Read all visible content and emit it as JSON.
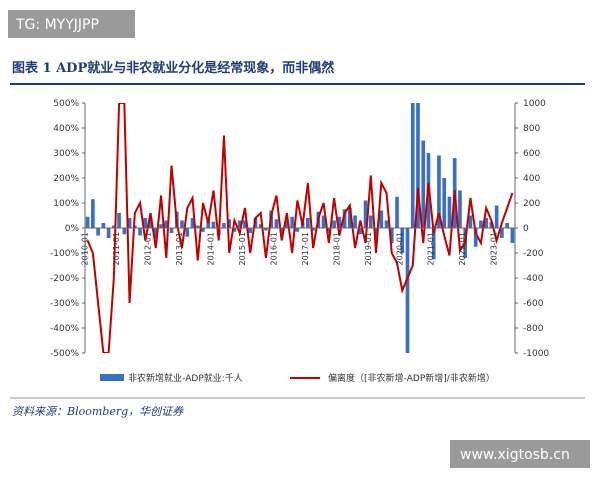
{
  "chart_data": {
    "type": "bar-line",
    "title": "图表 1   ADP就业与非农就业分化是经常现象，而非偶然",
    "source": "资料来源：Bloomberg，华创证券",
    "annotations": [
      "TG: MYYJJPP",
      "www.xigtosb.cn"
    ],
    "categories": [
      "2010-01",
      null,
      null,
      null,
      null,
      null,
      "2011-01",
      null,
      null,
      null,
      null,
      null,
      "2012-01",
      null,
      null,
      null,
      null,
      null,
      "2013-01",
      null,
      null,
      null,
      null,
      null,
      "2014-01",
      null,
      null,
      null,
      null,
      null,
      "2015-01",
      null,
      null,
      null,
      null,
      null,
      "2016-01",
      null,
      null,
      null,
      null,
      null,
      "2017-01",
      null,
      null,
      null,
      null,
      null,
      "2018-01",
      null,
      null,
      null,
      null,
      null,
      "2019-01",
      null,
      null,
      null,
      null,
      null,
      "2020-01",
      null,
      null,
      null,
      null,
      null,
      "2021-01",
      null,
      null,
      null,
      null,
      null,
      "2022-01",
      null,
      null,
      null,
      null,
      null,
      "2023-01",
      null,
      null,
      null
    ],
    "ylim": [
      -500,
      500
    ],
    "yticks": [
      {
        "value": -500,
        "label": "-500%"
      },
      {
        "value": -400,
        "label": "-400%"
      },
      {
        "value": -300,
        "label": "-300%"
      },
      {
        "value": -200,
        "label": "-200%"
      },
      {
        "value": -100,
        "label": "-100%"
      },
      {
        "value": 0,
        "label": "0%"
      },
      {
        "value": 100,
        "label": "100%"
      },
      {
        "value": 200,
        "label": "200%"
      },
      {
        "value": 300,
        "label": "300%"
      },
      {
        "value": 400,
        "label": "400%"
      },
      {
        "value": 500,
        "label": "500%"
      }
    ],
    "y2lim": [
      -1000,
      1000
    ],
    "y2ticks": [
      -1000,
      -800,
      -600,
      -400,
      -200,
      0,
      200,
      400,
      600,
      800,
      1000
    ],
    "series": [
      {
        "name": "非农新增就业-ADP就业:千人",
        "type": "bar",
        "axis": "y2",
        "color": "#3b6fc4",
        "values": [
          90,
          230,
          -60,
          40,
          -80,
          20,
          120,
          -50,
          80,
          20,
          -60,
          80,
          70,
          -80,
          30,
          60,
          -40,
          130,
          60,
          -70,
          80,
          20,
          -30,
          60,
          50,
          -60,
          40,
          70,
          -30,
          60,
          60,
          -40,
          80,
          30,
          -20,
          140,
          70,
          -50,
          60,
          90,
          -30,
          40,
          80,
          -20,
          130,
          100,
          -40,
          60,
          90,
          150,
          160,
          100,
          -50,
          220,
          100,
          -80,
          140,
          60,
          -120,
          250,
          -200,
          -1000,
          1000,
          1000,
          700,
          600,
          -250,
          580,
          400,
          250,
          560,
          300,
          -240,
          100,
          -150,
          60,
          80,
          50,
          180,
          -80,
          40,
          -120
        ]
      },
      {
        "name": "偏离度（[非农新增-ADP新增]/非农新增）",
        "type": "line",
        "axis": "y",
        "color": "#c00000",
        "values": [
          -50,
          -100,
          -300,
          -500,
          -500,
          -200,
          500,
          500,
          -300,
          60,
          100,
          -50,
          60,
          -80,
          130,
          -120,
          250,
          20,
          -80,
          80,
          120,
          -130,
          100,
          20,
          150,
          -50,
          370,
          -100,
          30,
          -20,
          80,
          -100,
          40,
          60,
          -120,
          50,
          130,
          -50,
          60,
          -100,
          110,
          10,
          180,
          -80,
          40,
          100,
          -60,
          120,
          -30,
          60,
          90,
          -80,
          30,
          -60,
          210,
          -100,
          180,
          140,
          -100,
          -140,
          -250,
          -200,
          -150,
          160,
          -60,
          180,
          -20,
          60,
          -30,
          -110,
          150,
          -90,
          -60,
          120,
          -20,
          -60,
          80,
          30,
          -50,
          20,
          80,
          140
        ]
      }
    ]
  }
}
